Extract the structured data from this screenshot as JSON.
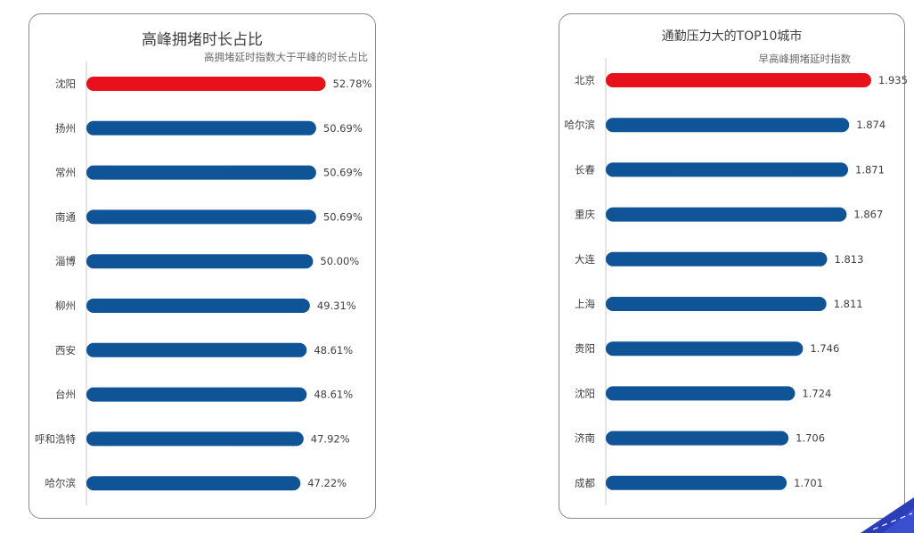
{
  "chart_data": [
    {
      "type": "bar",
      "orientation": "horizontal",
      "title": "高峰拥堵时长占比",
      "subtitle": "高拥堵延时指数大于平峰的时长占比",
      "categories": [
        "沈阳",
        "扬州",
        "常州",
        "南通",
        "淄博",
        "柳州",
        "西安",
        "台州",
        "呼和浩特",
        "哈尔滨"
      ],
      "values": [
        52.78,
        50.69,
        50.69,
        50.69,
        50.0,
        49.31,
        48.61,
        48.61,
        47.92,
        47.22
      ],
      "value_labels": [
        "52.78%",
        "50.69%",
        "50.69%",
        "50.69%",
        "50.00%",
        "49.31%",
        "48.61%",
        "48.61%",
        "47.92%",
        "47.22%"
      ],
      "highlight_index": 0,
      "highlight_color": "#e8101a",
      "bar_color": "#0f5496",
      "xlim": [
        0,
        57
      ],
      "grid": false,
      "legend": "none"
    },
    {
      "type": "bar",
      "orientation": "horizontal",
      "title": "通勤压力大的TOP10城市",
      "subtitle": "早高峰拥堵延时指数",
      "categories": [
        "北京",
        "哈尔滨",
        "长春",
        "重庆",
        "大连",
        "上海",
        "贵阳",
        "沈阳",
        "济南",
        "成都"
      ],
      "values": [
        1.935,
        1.874,
        1.871,
        1.867,
        1.813,
        1.811,
        1.746,
        1.724,
        1.706,
        1.701
      ],
      "value_labels": [
        "1.935",
        "1.874",
        "1.871",
        "1.867",
        "1.813",
        "1.811",
        "1.746",
        "1.724",
        "1.706",
        "1.701"
      ],
      "highlight_index": 0,
      "highlight_color": "#e8101a",
      "bar_color": "#0f5496",
      "xlim": [
        1.2,
        1.94
      ],
      "grid": false,
      "legend": "none"
    }
  ],
  "accent_color": "#2b3db8"
}
